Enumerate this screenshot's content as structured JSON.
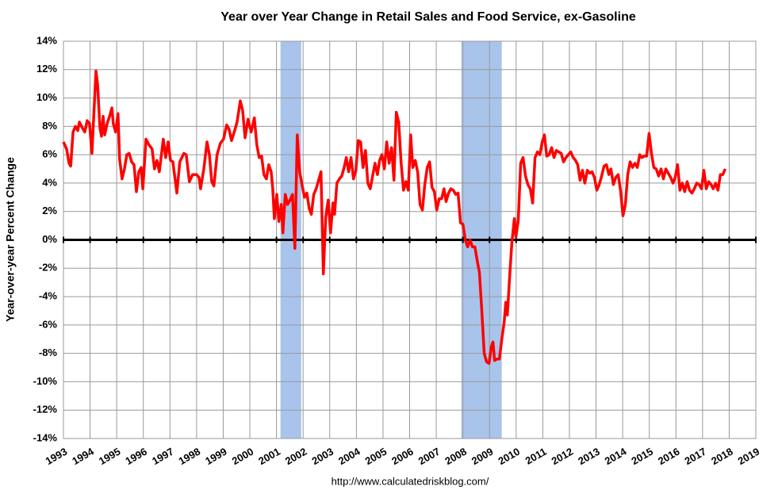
{
  "chart_data": {
    "type": "line",
    "title": "Year over Year Change in Retail Sales and Food Service, ex-Gasoline",
    "y_label": "Year-over-year Percent Change",
    "source": "http://www.calculatedriskblog.com/",
    "color": "#ff0000",
    "recession_color": "#a9c4eb",
    "recessions": [
      {
        "start": 2001.15,
        "end": 2001.93
      },
      {
        "start": 2007.94,
        "end": 2009.46
      }
    ],
    "grid": true,
    "xlim": [
      1993,
      2019
    ],
    "xticks": [
      1993,
      1994,
      1995,
      1996,
      1997,
      1998,
      1999,
      2000,
      2001,
      2002,
      2003,
      2004,
      2005,
      2006,
      2007,
      2008,
      2009,
      2010,
      2011,
      2012,
      2013,
      2014,
      2015,
      2016,
      2017,
      2018,
      2019
    ],
    "ylim": [
      -14,
      14
    ],
    "yticks": [
      {
        "value": -14,
        "label": "-14%"
      },
      {
        "value": -12,
        "label": "-12%"
      },
      {
        "value": -10,
        "label": "-10%"
      },
      {
        "value": -8,
        "label": "-8%"
      },
      {
        "value": -6,
        "label": "-6%"
      },
      {
        "value": -4,
        "label": "-4%"
      },
      {
        "value": -2,
        "label": "-2%"
      },
      {
        "value": 0,
        "label": "0%"
      },
      {
        "value": 2,
        "label": "2%"
      },
      {
        "value": 4,
        "label": "4%"
      },
      {
        "value": 6,
        "label": "6%"
      },
      {
        "value": 8,
        "label": "8%"
      },
      {
        "value": 10,
        "label": "10%"
      },
      {
        "value": 12,
        "label": "12%"
      },
      {
        "value": 14,
        "label": "14%"
      }
    ],
    "x": [
      1993.0,
      1993.12,
      1993.21,
      1993.27,
      1993.36,
      1993.45,
      1993.54,
      1993.6,
      1993.71,
      1993.8,
      1993.89,
      1993.98,
      1994.07,
      1994.16,
      1994.22,
      1994.28,
      1994.37,
      1994.43,
      1994.49,
      1994.55,
      1994.64,
      1994.73,
      1994.82,
      1994.87,
      1994.96,
      1995.05,
      1995.11,
      1995.2,
      1995.29,
      1995.38,
      1995.47,
      1995.56,
      1995.65,
      1995.74,
      1995.83,
      1995.92,
      1995.98,
      1996.1,
      1996.21,
      1996.33,
      1996.42,
      1996.51,
      1996.6,
      1996.75,
      1996.84,
      1996.93,
      1997.02,
      1997.11,
      1997.26,
      1997.37,
      1997.52,
      1997.61,
      1997.73,
      1997.85,
      1998.0,
      1998.09,
      1998.15,
      1998.27,
      1998.39,
      1998.48,
      1998.57,
      1998.65,
      1998.77,
      1998.89,
      1999.01,
      1999.13,
      1999.22,
      1999.31,
      1999.43,
      1999.52,
      1999.64,
      1999.73,
      1999.82,
      1999.93,
      2000.05,
      2000.17,
      2000.26,
      2000.35,
      2000.44,
      2000.53,
      2000.62,
      2000.71,
      2000.8,
      2000.86,
      2000.92,
      2001.01,
      2001.09,
      2001.18,
      2001.24,
      2001.33,
      2001.42,
      2001.51,
      2001.6,
      2001.69,
      2001.78,
      2001.87,
      2001.96,
      2002.05,
      2002.14,
      2002.23,
      2002.31,
      2002.4,
      2002.49,
      2002.58,
      2002.67,
      2002.76,
      2002.85,
      2002.94,
      2003.03,
      2003.12,
      2003.18,
      2003.27,
      2003.36,
      2003.45,
      2003.54,
      2003.62,
      2003.71,
      2003.8,
      2003.89,
      2003.98,
      2004.07,
      2004.16,
      2004.25,
      2004.34,
      2004.43,
      2004.52,
      2004.61,
      2004.7,
      2004.79,
      2004.87,
      2004.96,
      2005.05,
      2005.14,
      2005.23,
      2005.32,
      2005.41,
      2005.5,
      2005.59,
      2005.68,
      2005.77,
      2005.86,
      2005.95,
      2006.04,
      2006.12,
      2006.21,
      2006.3,
      2006.39,
      2006.48,
      2006.57,
      2006.66,
      2006.75,
      2006.84,
      2006.93,
      2007.02,
      2007.11,
      2007.2,
      2007.29,
      2007.37,
      2007.46,
      2007.55,
      2007.64,
      2007.73,
      2007.82,
      2007.91,
      2008.0,
      2008.09,
      2008.18,
      2008.27,
      2008.36,
      2008.45,
      2008.54,
      2008.62,
      2008.71,
      2008.8,
      2008.89,
      2008.98,
      2009.07,
      2009.13,
      2009.19,
      2009.28,
      2009.37,
      2009.46,
      2009.55,
      2009.61,
      2009.67,
      2009.76,
      2009.84,
      2009.93,
      2009.99,
      2010.08,
      2010.17,
      2010.26,
      2010.35,
      2010.44,
      2010.53,
      2010.62,
      2010.71,
      2010.8,
      2010.89,
      2010.98,
      2011.06,
      2011.15,
      2011.24,
      2011.33,
      2011.42,
      2011.51,
      2011.6,
      2011.69,
      2011.78,
      2011.87,
      2011.96,
      2012.05,
      2012.14,
      2012.23,
      2012.31,
      2012.4,
      2012.49,
      2012.58,
      2012.67,
      2012.76,
      2012.85,
      2012.94,
      2013.03,
      2013.12,
      2013.21,
      2013.3,
      2013.39,
      2013.48,
      2013.56,
      2013.65,
      2013.74,
      2013.83,
      2013.92,
      2014.01,
      2014.1,
      2014.19,
      2014.28,
      2014.37,
      2014.46,
      2014.55,
      2014.64,
      2014.72,
      2014.81,
      2014.9,
      2014.99,
      2015.08,
      2015.17,
      2015.26,
      2015.35,
      2015.44,
      2015.53,
      2015.62,
      2015.71,
      2015.8,
      2015.89,
      2015.97,
      2016.06,
      2016.15,
      2016.24,
      2016.33,
      2016.42,
      2016.51,
      2016.6,
      2016.69,
      2016.78,
      2016.87,
      2016.96,
      2017.05,
      2017.14,
      2017.23,
      2017.32,
      2017.4,
      2017.49,
      2017.58,
      2017.67,
      2017.76,
      2017.85
    ],
    "values": [
      6.9,
      6.4,
      5.4,
      5.2,
      7.6,
      8.0,
      7.7,
      8.3,
      7.9,
      7.6,
      8.4,
      8.2,
      6.1,
      9.5,
      11.9,
      11.0,
      7.9,
      7.3,
      8.7,
      7.4,
      8.2,
      8.7,
      9.3,
      8.2,
      7.6,
      8.9,
      5.7,
      4.3,
      5.0,
      6.0,
      6.1,
      5.5,
      5.3,
      3.4,
      4.8,
      5.1,
      3.6,
      7.1,
      6.7,
      6.4,
      5.0,
      5.6,
      4.8,
      7.1,
      5.8,
      6.9,
      5.6,
      5.5,
      3.3,
      5.5,
      6.1,
      6.0,
      4.1,
      4.6,
      4.6,
      4.4,
      3.6,
      5.0,
      6.9,
      6.0,
      4.1,
      3.8,
      6.0,
      6.8,
      7.1,
      8.1,
      7.8,
      7.0,
      7.7,
      8.3,
      9.8,
      9.1,
      7.2,
      8.5,
      7.6,
      8.6,
      6.7,
      5.8,
      5.9,
      4.6,
      4.3,
      5.3,
      4.8,
      3.6,
      1.5,
      3.2,
      1.3,
      2.5,
      0.5,
      3.2,
      2.5,
      2.8,
      3.2,
      -0.6,
      7.4,
      4.8,
      3.9,
      3.0,
      3.3,
      2.2,
      1.8,
      3.2,
      3.6,
      4.2,
      4.8,
      -2.4,
      1.6,
      2.8,
      0.5,
      2.6,
      1.8,
      4.0,
      4.3,
      4.5,
      5.1,
      5.8,
      4.8,
      5.8,
      4.3,
      4.9,
      7.0,
      6.9,
      5.1,
      6.3,
      4.0,
      3.6,
      4.5,
      5.4,
      4.6,
      5.6,
      6.0,
      5.0,
      6.9,
      5.4,
      6.5,
      4.2,
      9.0,
      8.3,
      5.4,
      3.5,
      4.1,
      3.5,
      7.4,
      5.1,
      5.6,
      4.8,
      2.5,
      2.1,
      3.9,
      5.1,
      5.5,
      3.7,
      3.4,
      2.1,
      2.9,
      2.9,
      3.6,
      2.7,
      3.3,
      3.6,
      3.5,
      3.2,
      3.3,
      1.2,
      1.1,
      0.0,
      -0.5,
      0.0,
      -0.5,
      -0.5,
      -1.5,
      -2.3,
      -5.0,
      -8.0,
      -8.6,
      -8.7,
      -7.5,
      -7.2,
      -8.5,
      -8.4,
      -8.4,
      -7.0,
      -5.8,
      -4.4,
      -5.3,
      -2.5,
      -0.2,
      1.5,
      0.2,
      1.4,
      5.4,
      5.8,
      4.5,
      3.9,
      3.6,
      2.6,
      5.8,
      6.2,
      6.0,
      6.9,
      7.4,
      5.9,
      6.0,
      6.5,
      5.8,
      6.3,
      6.2,
      6.1,
      5.5,
      5.8,
      6.0,
      6.2,
      5.8,
      5.6,
      5.3,
      4.2,
      4.9,
      4.0,
      4.9,
      4.7,
      4.8,
      4.4,
      3.5,
      3.9,
      4.5,
      5.2,
      5.3,
      4.6,
      5.0,
      3.9,
      4.4,
      4.6,
      3.5,
      1.7,
      2.5,
      4.6,
      5.5,
      5.1,
      5.4,
      5.1,
      6.0,
      5.8,
      5.9,
      5.9,
      7.5,
      6.1,
      5.1,
      5.0,
      4.5,
      5.0,
      4.3,
      5.0,
      4.7,
      4.4,
      4.0,
      4.4,
      5.3,
      3.5,
      4.0,
      3.4,
      4.1,
      3.5,
      3.3,
      3.6,
      4.0,
      3.9,
      3.6,
      4.9,
      3.6,
      4.1,
      3.9,
      3.6,
      4.0,
      3.5,
      4.6,
      4.6,
      5.0
    ]
  }
}
